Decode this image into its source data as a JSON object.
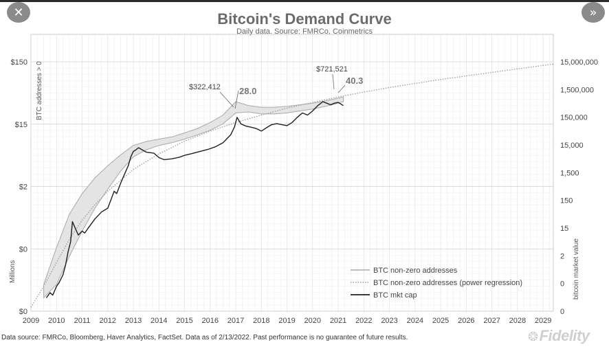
{
  "viewer": {
    "close_icon": "close-icon",
    "next_icon": "double-chevron-right-icon"
  },
  "chart_data": {
    "type": "line",
    "title": "Bitcoin's Demand Curve",
    "subtitle": "Daily data.  Source: FMRCo, Coinmetrics",
    "left_axis": {
      "label_top": "BTC addresses > 0",
      "label_bottom": "Millions",
      "tick_labels": [
        "$0",
        "$0",
        "$2",
        "$15",
        "$150"
      ]
    },
    "right_axis": {
      "label": "bitcoin market value",
      "tick_labels": [
        "0",
        "0",
        "2",
        "15",
        "150",
        "1,500",
        "15,000",
        "150,000",
        "1,500,000",
        "15,000,000"
      ]
    },
    "x": {
      "ticks": [
        "2009",
        "2010",
        "2011",
        "2012",
        "2013",
        "2014",
        "2015",
        "2016",
        "2017",
        "2018",
        "2019",
        "2020",
        "2021",
        "2022",
        "2023",
        "2024",
        "2025",
        "2026",
        "2027",
        "2028",
        "2029"
      ],
      "range": [
        2009,
        2029.4
      ]
    },
    "grid": true,
    "legend_position": "bottom-right",
    "legend": [
      "BTC non-zero addresses",
      "BTC non-zero addresses (power regression)",
      "BTC mkt cap"
    ],
    "series": [
      {
        "name": "BTC non-zero addresses",
        "style": "band",
        "x": [
          2009.5,
          2010.0,
          2010.5,
          2011.0,
          2011.5,
          2012.0,
          2012.5,
          2013.0,
          2013.5,
          2014.0,
          2014.5,
          2015.0,
          2015.5,
          2016.0,
          2016.5,
          2017.0,
          2017.5,
          2018.0,
          2018.5,
          2019.0,
          2019.5,
          2020.0,
          2020.5,
          2021.0,
          2021.2
        ],
        "upper": [
          0.18,
          0.55,
          1.5,
          2.8,
          4.5,
          6.5,
          9.0,
          12.0,
          13.5,
          14.5,
          15.5,
          17.5,
          20.0,
          24.0,
          30.0,
          45.0,
          40.0,
          38.0,
          38.0,
          39.0,
          41.0,
          43.0,
          46.0,
          50.0,
          52.0
        ],
        "lower": [
          0.12,
          0.18,
          0.42,
          0.9,
          1.8,
          3.2,
          5.5,
          8.5,
          10.5,
          12.0,
          13.0,
          14.5,
          16.5,
          19.0,
          23.0,
          32.0,
          33.0,
          31.0,
          31.0,
          32.0,
          34.0,
          36.0,
          39.0,
          43.0,
          45.0
        ]
      },
      {
        "name": "BTC non-zero addresses (power regression)",
        "style": "dotted",
        "x": [
          2009.0,
          2009.5,
          2010.0,
          2010.5,
          2011.0,
          2011.5,
          2012.0,
          2013.0,
          2014.0,
          2015.0,
          2016.0,
          2017.0,
          2018.0,
          2019.0,
          2020.0,
          2021.0,
          2022.0,
          2023.0,
          2024.0,
          2025.0,
          2026.0,
          2027.0,
          2028.0,
          2029.4
        ],
        "y": [
          0.09,
          0.17,
          0.35,
          0.7,
          1.25,
          2.0,
          3.0,
          5.8,
          9.3,
          13.6,
          18.5,
          24.0,
          30.0,
          37.0,
          44.0,
          52.0,
          60.0,
          69.0,
          78.0,
          88.0,
          98.0,
          109.0,
          121.0,
          140.0
        ]
      },
      {
        "name": "BTC mkt cap",
        "style": "solid",
        "x": [
          2009.6,
          2009.75,
          2009.85,
          2010.0,
          2010.1,
          2010.25,
          2010.35,
          2010.45,
          2010.55,
          2010.62,
          2010.72,
          2010.85,
          2011.0,
          2011.1,
          2011.25,
          2011.5,
          2011.75,
          2012.0,
          2012.25,
          2012.35,
          2012.5,
          2012.65,
          2012.8,
          2012.9,
          2013.0,
          2013.1,
          2013.2,
          2013.5,
          2013.8,
          2014.0,
          2014.2,
          2014.5,
          2014.8,
          2015.0,
          2015.3,
          2015.6,
          2015.9,
          2016.2,
          2016.5,
          2016.8,
          2016.95,
          2017.05,
          2017.2,
          2017.4,
          2017.6,
          2017.8,
          2018.0,
          2018.2,
          2018.4,
          2018.6,
          2018.8,
          2019.0,
          2019.2,
          2019.4,
          2019.6,
          2019.8,
          2020.0,
          2020.2,
          2020.4,
          2020.55,
          2020.7,
          2020.85,
          2021.0,
          2021.1,
          2021.2
        ],
        "y": [
          0.12,
          0.14,
          0.13,
          0.17,
          0.19,
          0.24,
          0.32,
          0.48,
          0.65,
          1.2,
          1.0,
          0.8,
          0.9,
          0.85,
          1.0,
          1.3,
          1.6,
          1.8,
          3.0,
          2.8,
          3.8,
          5.0,
          6.5,
          8.5,
          10.0,
          10.5,
          11.2,
          9.8,
          9.5,
          8.3,
          7.8,
          8.0,
          8.4,
          8.9,
          9.4,
          10.0,
          10.6,
          11.5,
          13.0,
          16.5,
          21.0,
          28.0,
          23.0,
          21.5,
          20.8,
          20.0,
          18.5,
          20.5,
          22.5,
          23.2,
          22.5,
          21.8,
          24.0,
          28.0,
          32.0,
          30.0,
          34.0,
          40.0,
          45.0,
          43.0,
          41.0,
          43.0,
          44.0,
          42.0,
          40.0
        ]
      }
    ],
    "annotations": [
      {
        "text": "$322,412",
        "style": "box-text"
      },
      {
        "text": "28.0",
        "style": "emphasis"
      },
      {
        "text": "$721,521",
        "style": "box-text"
      },
      {
        "text": "40.3",
        "style": "emphasis"
      }
    ]
  },
  "footer": {
    "disclaimer": "Data source: FMRCo, Bloomberg, Haver Analytics, FactSet. Data as of 2/13/2022. Past performance is no guarantee of future results.",
    "logo": "Fidelity",
    "logo_icon": "fidelity-mark-icon"
  }
}
